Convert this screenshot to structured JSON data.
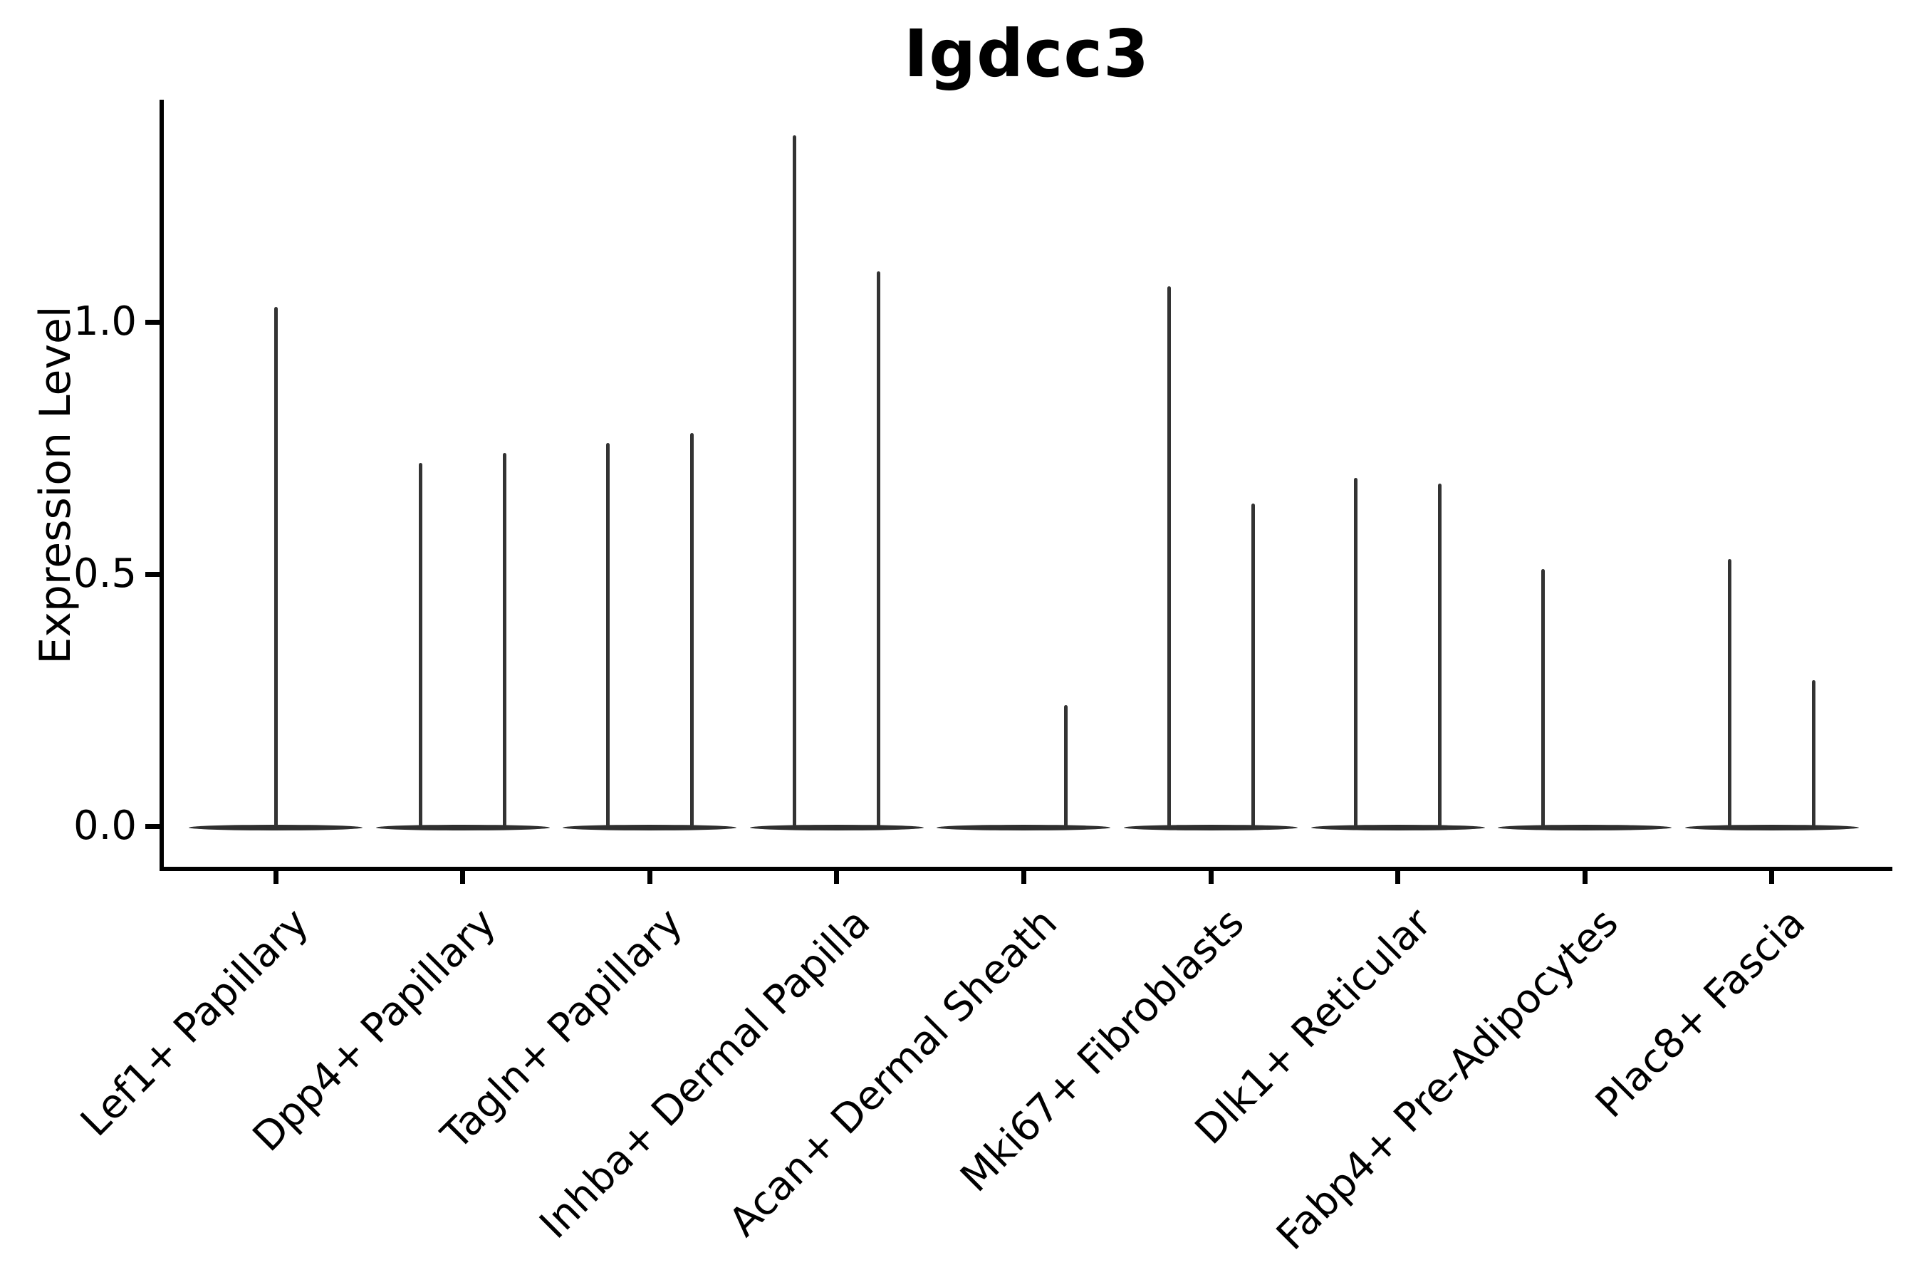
{
  "title": "Igdcc3",
  "y_axis": {
    "label": "Expression Level",
    "tick_labels": [
      "0.0",
      "0.5",
      "1.0"
    ],
    "tick_values": [
      0.0,
      0.5,
      1.0
    ]
  },
  "x_axis": {
    "tick_labels": [
      "Lef1+ Papillary",
      "Dpp4+ Papillary",
      "Tagln+ Papillary",
      "Inhba+ Dermal Papilla",
      "Acan+ Dermal Sheath",
      "Mki67+ Fibroblasts",
      "Dlk1+ Reticular",
      "Fabp4+ Pre-Adipocytes",
      "Plac8+ Fascia"
    ],
    "label_rotation_deg": 45
  },
  "chart_data": {
    "type": "violin",
    "title": "Igdcc3",
    "xlabel": "",
    "ylabel": "Expression Level",
    "yticks": [
      0.0,
      0.5,
      1.0
    ],
    "ylim": [
      -0.09,
      1.44
    ],
    "grid": false,
    "legend": "none",
    "line_color": "#333333",
    "axis_color": "#000000",
    "description": "Violin plot of Igdcc3 expression per fibroblast subtype; each violin is a flat body at 0 with a thin spike rising to the maximum expression. Most categories contain two dodged violins (left/right slots); slot null means the violin is absent (no spike, flat body only).",
    "categories": [
      "Lef1+ Papillary",
      "Dpp4+ Papillary",
      "Tagln+ Papillary",
      "Inhba+ Dermal Papilla",
      "Acan+ Dermal Sheath",
      "Mki67+ Fibroblasts",
      "Dlk1+ Reticular",
      "Fabp4+ Pre-Adipocytes",
      "Plac8+ Fascia"
    ],
    "violins": [
      {
        "category": "Lef1+ Papillary",
        "spikes": [
          {
            "slot": "center",
            "max": 1.03
          }
        ]
      },
      {
        "category": "Dpp4+ Papillary",
        "spikes": [
          {
            "slot": "left",
            "max": 0.72
          },
          {
            "slot": "right",
            "max": 0.74
          }
        ]
      },
      {
        "category": "Tagln+ Papillary",
        "spikes": [
          {
            "slot": "left",
            "max": 0.76
          },
          {
            "slot": "right",
            "max": 0.78
          }
        ]
      },
      {
        "category": "Inhba+ Dermal Papilla",
        "spikes": [
          {
            "slot": "left",
            "max": 1.37
          },
          {
            "slot": "right",
            "max": 1.1
          }
        ]
      },
      {
        "category": "Acan+ Dermal Sheath",
        "spikes": [
          {
            "slot": "right",
            "max": 0.24
          }
        ]
      },
      {
        "category": "Mki67+ Fibroblasts",
        "spikes": [
          {
            "slot": "left",
            "max": 1.07
          },
          {
            "slot": "right",
            "max": 0.64
          }
        ]
      },
      {
        "category": "Dlk1+ Reticular",
        "spikes": [
          {
            "slot": "left",
            "max": 0.69
          },
          {
            "slot": "right",
            "max": 0.68
          }
        ]
      },
      {
        "category": "Fabp4+ Pre-Adipocytes",
        "spikes": [
          {
            "slot": "left",
            "max": 0.51
          }
        ]
      },
      {
        "category": "Plac8+ Fascia",
        "spikes": [
          {
            "slot": "left",
            "max": 0.53
          },
          {
            "slot": "right",
            "max": 0.29
          }
        ]
      }
    ]
  }
}
